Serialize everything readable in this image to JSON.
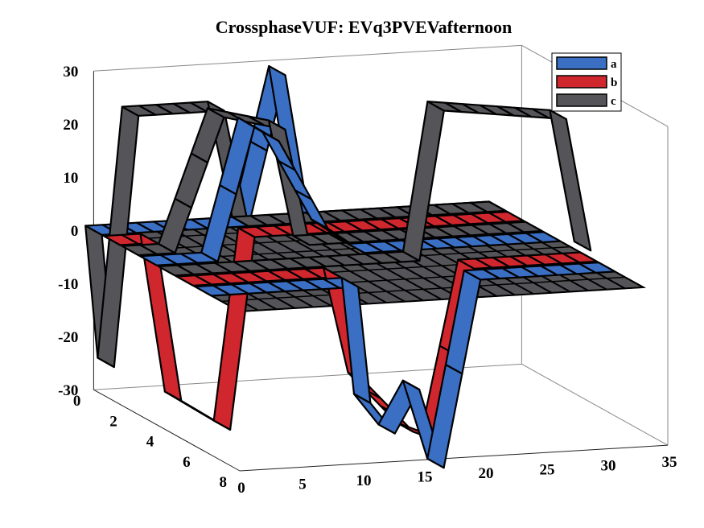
{
  "chart_data": {
    "type": "waterfall-3d",
    "title": "CrossphaseVUF: EVq3PVEVafternoon",
    "xlabel": "",
    "ylabel": "",
    "zlabel": "",
    "x_ticks": [
      "0",
      "5",
      "10",
      "15",
      "20",
      "25",
      "30",
      "35"
    ],
    "y_ticks": [
      "0",
      "2",
      "4",
      "6",
      "8"
    ],
    "z_ticks": [
      "30",
      "20",
      "10",
      "0",
      "-10",
      "-20",
      "-30"
    ],
    "xlim": [
      0,
      35
    ],
    "ylim": [
      0,
      8
    ],
    "zlim": [
      -30,
      30
    ],
    "legend_position": "top-right",
    "series": [
      {
        "name": "a",
        "color": "#3a6fc4",
        "ribbons": [
          {
            "y": 0,
            "x": [
              0,
              7,
              12,
              15,
              17,
              20,
              23,
              33
            ],
            "z": [
              0,
              0,
              0,
              28,
              0,
              0,
              0,
              0
            ]
          },
          {
            "y": 3,
            "x": [
              0,
              5,
              8,
              10,
              14,
              17,
              20,
              33
            ],
            "z": [
              0,
              0,
              25,
              22,
              5,
              0,
              0,
              0
            ]
          },
          {
            "y": 6,
            "x": [
              0,
              12,
              13,
              15,
              17,
              19,
              22,
              33
            ],
            "z": [
              0,
              0,
              -22,
              -28,
              -20,
              -35,
              0,
              0
            ]
          }
        ]
      },
      {
        "name": "b",
        "color": "#d0262d",
        "ribbons": [
          {
            "y": 1,
            "x": [
              0,
              3,
              5,
              9,
              11,
              33
            ],
            "z": [
              0,
              0,
              -30,
              -36,
              0,
              0
            ]
          },
          {
            "y": 5,
            "x": [
              0,
              12,
              14,
              18,
              20,
              23,
              33
            ],
            "z": [
              0,
              0,
              -20,
              -30,
              -32,
              0,
              0
            ]
          }
        ]
      },
      {
        "name": "c",
        "color": "#555458",
        "ribbons": [
          {
            "y": 0,
            "x": [
              0,
              1,
              3,
              10,
              12,
              33
            ],
            "z": [
              0,
              -25,
              22,
              22,
              0,
              0
            ]
          },
          {
            "y": 2,
            "x": [
              0,
              3,
              7,
              12,
              14,
              33
            ],
            "z": [
              0,
              0,
              25,
              22,
              0,
              0
            ]
          },
          {
            "y": 4,
            "x": [
              0,
              20,
              22,
              32,
              34
            ],
            "z": [
              0,
              0,
              28,
              25,
              0
            ]
          }
        ]
      }
    ]
  }
}
